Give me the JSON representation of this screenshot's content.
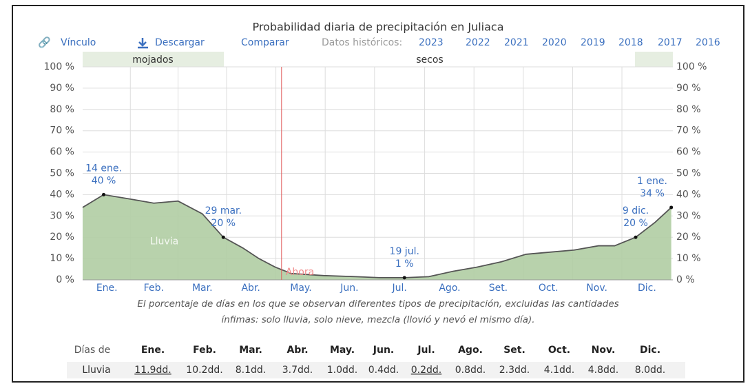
{
  "links": [
    "Vínculo",
    "Descargar",
    "Comparar"
  ],
  "historic": {
    "label": "Datos históricos:",
    "years": [
      "2023",
      "2022",
      "2021",
      "2020",
      "2019",
      "2018",
      "2017",
      "2016"
    ]
  },
  "chart_data": {
    "type": "area",
    "title": "Probabilidad diaria de precipitación en Juliaca",
    "bands": [
      {
        "label": "mojados"
      },
      {
        "label": "secos"
      }
    ],
    "series_label": "Lluvia",
    "now_label": "Ahora",
    "now_x": 124,
    "x": [
      1,
      14,
      30,
      45,
      60,
      75,
      88,
      100,
      110,
      120,
      130,
      150,
      170,
      185,
      200,
      215,
      230,
      245,
      260,
      275,
      290,
      305,
      320,
      330,
      343,
      355,
      365
    ],
    "series": [
      {
        "name": "Lluvia",
        "color": "#b0cda3",
        "line_color": "#555555",
        "values": [
          34,
          40,
          38,
          36,
          37,
          31,
          20,
          15,
          10,
          6,
          3,
          2,
          1.5,
          1,
          1,
          1.5,
          4,
          6,
          8.5,
          12,
          13,
          14,
          16,
          16,
          20,
          27,
          34
        ]
      }
    ],
    "xlim": [
      1,
      366
    ],
    "xticks": [
      {
        "value": 16,
        "label": "Ene."
      },
      {
        "value": 45,
        "label": "Feb."
      },
      {
        "value": 75,
        "label": "Mar."
      },
      {
        "value": 105,
        "label": "Abr."
      },
      {
        "value": 136,
        "label": "May."
      },
      {
        "value": 166,
        "label": "Jun."
      },
      {
        "value": 197,
        "label": "Jul."
      },
      {
        "value": 228,
        "label": "Ago."
      },
      {
        "value": 258,
        "label": "Set."
      },
      {
        "value": 289,
        "label": "Oct."
      },
      {
        "value": 319,
        "label": "Nov."
      },
      {
        "value": 350,
        "label": "Dic."
      }
    ],
    "ylim": [
      0,
      100
    ],
    "yticks": [
      {
        "value": 0,
        "label": "0 %"
      },
      {
        "value": 10,
        "label": "10 %"
      },
      {
        "value": 20,
        "label": "20 %"
      },
      {
        "value": 30,
        "label": "30 %"
      },
      {
        "value": 40,
        "label": "40 %"
      },
      {
        "value": 50,
        "label": "50 %"
      },
      {
        "value": 60,
        "label": "60 %"
      },
      {
        "value": 70,
        "label": "70 %"
      },
      {
        "value": 80,
        "label": "80 %"
      },
      {
        "value": 90,
        "label": "90 %"
      },
      {
        "value": 100,
        "label": "100 %"
      }
    ],
    "grid": true,
    "annotations": [
      {
        "x": 14,
        "value": 40,
        "date": "14 ene.",
        "label": "40 %"
      },
      {
        "x": 88,
        "value": 20,
        "date": "29 mar.",
        "label": "20 %"
      },
      {
        "x": 200,
        "value": 1,
        "date": "19 jul.",
        "label": "1 %"
      },
      {
        "x": 343,
        "value": 20,
        "date": "9 dic.",
        "label": "20 %"
      },
      {
        "x": 365,
        "value": 34,
        "date": "1 ene.",
        "label": "34 %"
      }
    ],
    "caption": [
      "El porcentaje de días en los que se observan diferentes tipos de precipitación, excluidas las cantidades",
      "ínfimas: solo lluvia, solo nieve, mezcla (llovió y nevó el mismo día)."
    ]
  },
  "table": {
    "header": [
      "Días de",
      "Ene.",
      "Feb.",
      "Mar.",
      "Abr.",
      "May.",
      "Jun.",
      "Jul.",
      "Ago.",
      "Set.",
      "Oct.",
      "Nov.",
      "Dic."
    ],
    "rows": [
      [
        "Lluvia",
        "11.9dd.",
        "10.2dd.",
        "8.1dd.",
        "3.7dd.",
        "1.0dd.",
        "0.4dd.",
        "0.2dd.",
        "0.8dd.",
        "2.3dd.",
        "4.1dd.",
        "4.8dd.",
        "8.0dd."
      ]
    ],
    "underlined": [
      false,
      true,
      false,
      false,
      false,
      false,
      false,
      true,
      false,
      false,
      false,
      false,
      false
    ]
  }
}
